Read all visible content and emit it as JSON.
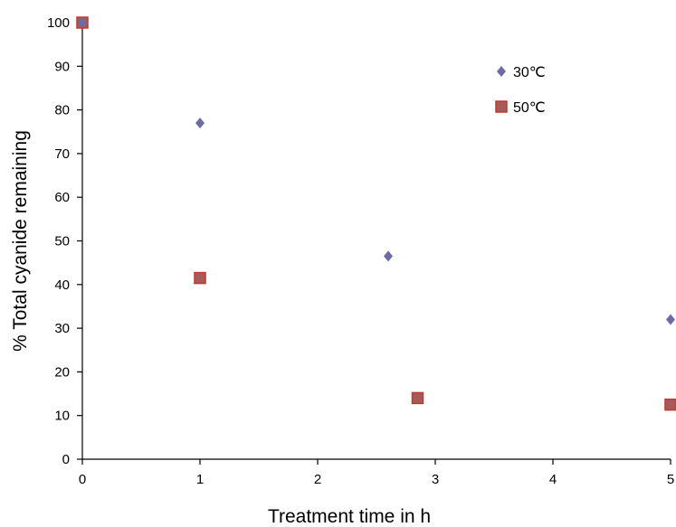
{
  "chart_data": {
    "type": "scatter",
    "title": "",
    "xlabel": "Treatment time in h",
    "ylabel": "% Total cyanide remaining",
    "xlim": [
      0,
      5
    ],
    "ylim": [
      0,
      100
    ],
    "xticks": [
      0,
      1,
      2,
      3,
      4,
      5
    ],
    "yticks": [
      0,
      10,
      20,
      30,
      40,
      50,
      60,
      70,
      80,
      90,
      100
    ],
    "grid": false,
    "legend_position": "top-right",
    "series": [
      {
        "name": "30℃",
        "marker": "diamond",
        "color": "#6b6ba8",
        "points": [
          {
            "x": 0,
            "y": 100
          },
          {
            "x": 1,
            "y": 77
          },
          {
            "x": 2.6,
            "y": 46.5
          },
          {
            "x": 5,
            "y": 32
          }
        ]
      },
      {
        "name": "50℃",
        "marker": "square",
        "color": "#a85a5a",
        "edge_color": "#c0392b",
        "points": [
          {
            "x": 0,
            "y": 100
          },
          {
            "x": 1,
            "y": 41.5
          },
          {
            "x": 2.85,
            "y": 14
          },
          {
            "x": 5,
            "y": 12.5
          }
        ]
      }
    ]
  }
}
